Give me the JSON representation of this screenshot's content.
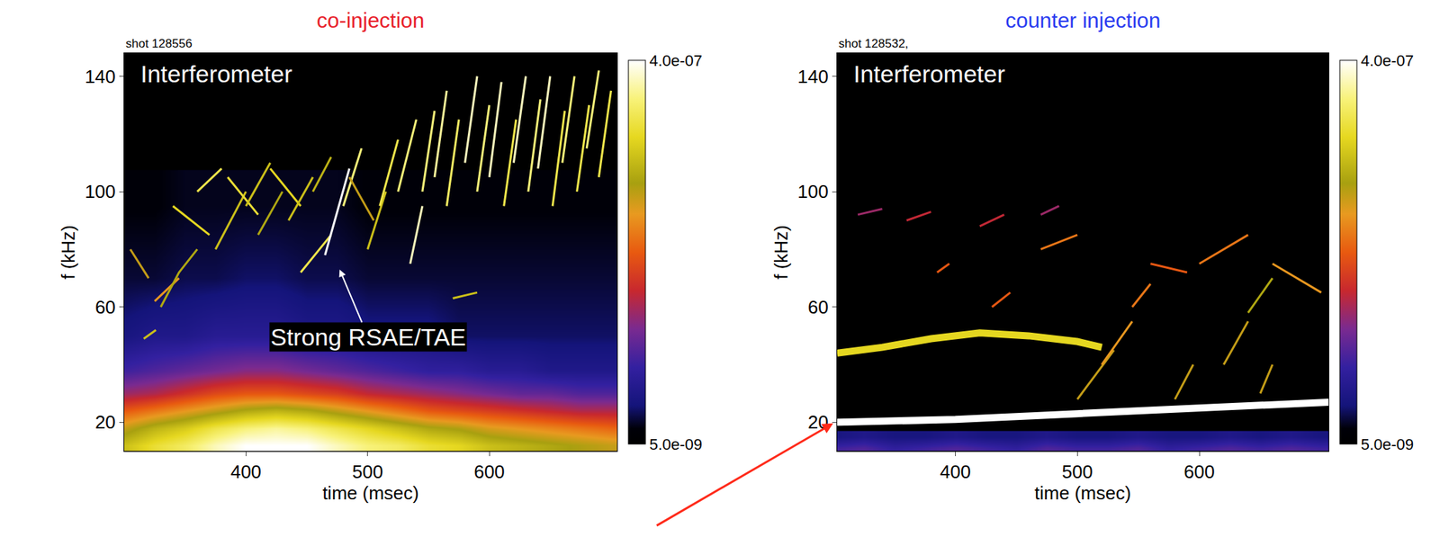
{
  "chart_data": [
    {
      "type": "heatmap",
      "title": "co-injection",
      "color": "#e8202a",
      "subtitle": "shot 128556",
      "x_label": "time (msec)",
      "y_label": "f (kHz)",
      "xlim": [
        300,
        705
      ],
      "xticks": [
        400,
        500,
        600
      ],
      "ylim": [
        10,
        148
      ],
      "yticks": [
        20,
        60,
        100,
        140
      ],
      "grid": false,
      "colorbar": {
        "range": [
          5e-09,
          4e-07
        ],
        "ticks": [
          {
            "value": 4e-07,
            "label": "4.0e-07"
          },
          {
            "value": 5e-09,
            "label": "5.0e-09"
          }
        ]
      },
      "heatmap": {
        "x": [
          300,
          325,
          350,
          375,
          400,
          425,
          450,
          475,
          500,
          525,
          550,
          575,
          600,
          625,
          650,
          675,
          700
        ],
        "y": [
          12,
          18,
          24,
          30,
          38,
          50,
          70,
          95
        ],
        "z": [
          [
            3e-07,
            3.3e-07,
            3.5e-07,
            3.8e-07,
            4e-07,
            4e-07,
            4e-07,
            3.8e-07,
            3.6e-07,
            3.5e-07,
            3.3e-07,
            3.2e-07,
            3e-07,
            2.9e-07,
            2.8e-07,
            2.7e-07,
            2.6e-07
          ],
          [
            2.6e-07,
            2.9e-07,
            3.1e-07,
            3.4e-07,
            3.6e-07,
            3.7e-07,
            3.6e-07,
            3.4e-07,
            3.2e-07,
            3e-07,
            2.8e-07,
            2.7e-07,
            2.5e-07,
            2.4e-07,
            2.3e-07,
            2.2e-07,
            2.1e-07
          ],
          [
            2e-07,
            2.2e-07,
            2.4e-07,
            2.6e-07,
            2.8e-07,
            2.9e-07,
            2.8e-07,
            2.6e-07,
            2.4e-07,
            2.2e-07,
            2e-07,
            1.9e-07,
            1.8e-07,
            1.7e-07,
            1.6e-07,
            1.5e-07,
            1.5e-07
          ],
          [
            1.4e-07,
            1.5e-07,
            1.7e-07,
            1.9e-07,
            2e-07,
            2e-07,
            1.9e-07,
            1.8e-07,
            1.6e-07,
            1.5e-07,
            1.4e-07,
            1.3e-07,
            1.2e-07,
            1.1e-07,
            1.1e-07,
            1e-07,
            1e-07
          ],
          [
            9e-08,
            1e-07,
            1.1e-07,
            1.2e-07,
            1.3e-07,
            1.3e-07,
            1.2e-07,
            1.1e-07,
            1e-07,
            9e-08,
            8e-08,
            8e-08,
            7e-08,
            7e-08,
            6e-08,
            6e-08,
            6e-08
          ],
          [
            5e-08,
            6e-08,
            6e-08,
            7e-08,
            7e-08,
            7e-08,
            6e-08,
            6e-08,
            5e-08,
            5e-08,
            5e-08,
            4e-08,
            4e-08,
            4e-08,
            4e-08,
            4e-08,
            4e-08
          ],
          [
            3e-08,
            3e-08,
            3.5e-08,
            3.5e-08,
            4e-08,
            4e-08,
            3.5e-08,
            3.5e-08,
            3e-08,
            3e-08,
            3e-08,
            3e-08,
            3e-08,
            3e-08,
            3e-08,
            3e-08,
            3e-08
          ],
          [
            2e-08,
            2e-08,
            2.5e-08,
            2.5e-08,
            2.5e-08,
            2.5e-08,
            2.5e-08,
            2.5e-08,
            2e-08,
            2e-08,
            2e-08,
            2e-08,
            2e-08,
            2e-08,
            2e-08,
            2e-08,
            2e-08
          ]
        ]
      },
      "series": [
        {
          "type": "line",
          "x": [
            305,
            320
          ],
          "values": [
            80,
            70
          ],
          "amplitude": 2.6e-07
        },
        {
          "type": "line",
          "x": [
            316,
            326
          ],
          "values": [
            49,
            52
          ],
          "amplitude": 3e-07
        },
        {
          "type": "line",
          "x": [
            325,
            345
          ],
          "values": [
            62,
            70
          ],
          "amplitude": 2.4e-07
        },
        {
          "type": "line",
          "x": [
            330,
            345,
            360
          ],
          "values": [
            60,
            72,
            80
          ],
          "amplitude": 2.8e-07
        },
        {
          "type": "line",
          "x": [
            340,
            370
          ],
          "values": [
            95,
            85
          ],
          "amplitude": 3.2e-07
        },
        {
          "type": "line",
          "x": [
            360,
            380
          ],
          "values": [
            100,
            108
          ],
          "amplitude": 3.4e-07
        },
        {
          "type": "line",
          "x": [
            375,
            400
          ],
          "values": [
            80,
            100
          ],
          "amplitude": 3e-07
        },
        {
          "type": "line",
          "x": [
            385,
            410
          ],
          "values": [
            105,
            92
          ],
          "amplitude": 3.3e-07
        },
        {
          "type": "line",
          "x": [
            400,
            420
          ],
          "values": [
            95,
            110
          ],
          "amplitude": 3e-07
        },
        {
          "type": "line",
          "x": [
            410,
            430
          ],
          "values": [
            85,
            100
          ],
          "amplitude": 2.8e-07
        },
        {
          "type": "line",
          "x": [
            420,
            445
          ],
          "values": [
            108,
            95
          ],
          "amplitude": 3.2e-07
        },
        {
          "type": "line",
          "x": [
            435,
            455
          ],
          "values": [
            90,
            105
          ],
          "amplitude": 3e-07
        },
        {
          "type": "line",
          "x": [
            445,
            470
          ],
          "values": [
            72,
            85
          ],
          "amplitude": 3.4e-07
        },
        {
          "type": "line",
          "x": [
            455,
            470
          ],
          "values": [
            100,
            112
          ],
          "amplitude": 2.9e-07
        },
        {
          "type": "line",
          "x": [
            465,
            485
          ],
          "values": [
            78,
            108
          ],
          "amplitude": 4e-07
        },
        {
          "type": "line",
          "x": [
            480,
            495
          ],
          "values": [
            95,
            115
          ],
          "amplitude": 3.6e-07
        },
        {
          "type": "line",
          "x": [
            485,
            505
          ],
          "values": [
            105,
            90
          ],
          "amplitude": 2.6e-07
        },
        {
          "type": "line",
          "x": [
            500,
            515
          ],
          "values": [
            80,
            100
          ],
          "amplitude": 3e-07
        },
        {
          "type": "line",
          "x": [
            510,
            525
          ],
          "values": [
            95,
            118
          ],
          "amplitude": 3.4e-07
        },
        {
          "type": "line",
          "x": [
            525,
            540
          ],
          "values": [
            100,
            125
          ],
          "amplitude": 3.6e-07
        },
        {
          "type": "line",
          "x": [
            535,
            545
          ],
          "values": [
            75,
            95
          ],
          "amplitude": 3.8e-07
        },
        {
          "type": "line",
          "x": [
            545,
            555
          ],
          "values": [
            100,
            128
          ],
          "amplitude": 3.6e-07
        },
        {
          "type": "line",
          "x": [
            555,
            565
          ],
          "values": [
            105,
            135
          ],
          "amplitude": 3.7e-07
        },
        {
          "type": "line",
          "x": [
            565,
            575
          ],
          "values": [
            95,
            125
          ],
          "amplitude": 3.5e-07
        },
        {
          "type": "line",
          "x": [
            570,
            590
          ],
          "values": [
            63,
            65
          ],
          "amplitude": 3e-07
        },
        {
          "type": "line",
          "x": [
            580,
            590
          ],
          "values": [
            110,
            140
          ],
          "amplitude": 3.8e-07
        },
        {
          "type": "line",
          "x": [
            590,
            600
          ],
          "values": [
            100,
            130
          ],
          "amplitude": 3.6e-07
        },
        {
          "type": "line",
          "x": [
            600,
            610
          ],
          "values": [
            105,
            138
          ],
          "amplitude": 3.8e-07
        },
        {
          "type": "line",
          "x": [
            612,
            622
          ],
          "values": [
            95,
            125
          ],
          "amplitude": 3.4e-07
        },
        {
          "type": "line",
          "x": [
            620,
            630
          ],
          "values": [
            110,
            140
          ],
          "amplitude": 3.8e-07
        },
        {
          "type": "line",
          "x": [
            632,
            642
          ],
          "values": [
            100,
            132
          ],
          "amplitude": 3.6e-07
        },
        {
          "type": "line",
          "x": [
            640,
            650
          ],
          "values": [
            108,
            140
          ],
          "amplitude": 3.8e-07
        },
        {
          "type": "line",
          "x": [
            652,
            662
          ],
          "values": [
            95,
            128
          ],
          "amplitude": 3.4e-07
        },
        {
          "type": "line",
          "x": [
            660,
            670
          ],
          "values": [
            110,
            140
          ],
          "amplitude": 3.6e-07
        },
        {
          "type": "line",
          "x": [
            672,
            682
          ],
          "values": [
            100,
            130
          ],
          "amplitude": 3.4e-07
        },
        {
          "type": "line",
          "x": [
            680,
            690
          ],
          "values": [
            115,
            142
          ],
          "amplitude": 3.6e-07
        },
        {
          "type": "line",
          "x": [
            690,
            700
          ],
          "values": [
            105,
            135
          ],
          "amplitude": 3.4e-07
        }
      ],
      "annotations": [
        {
          "text": "Interferometer"
        },
        {
          "text": "Strong RSAE/TAE",
          "x": 477,
          "y": 73
        }
      ]
    },
    {
      "type": "heatmap",
      "title": "counter injection",
      "color": "#2a3cf0",
      "subtitle": "shot 128532,",
      "x_label": "time (msec)",
      "y_label": "f (kHz)",
      "xlim": [
        303,
        706
      ],
      "xticks": [
        400,
        500,
        600
      ],
      "ylim": [
        10,
        148
      ],
      "yticks": [
        20,
        60,
        100,
        140
      ],
      "grid": false,
      "colorbar": {
        "range": [
          5e-09,
          4e-07
        ],
        "ticks": [
          {
            "value": 4e-07,
            "label": "4.0e-07"
          },
          {
            "value": 5e-09,
            "label": "5.0e-09"
          }
        ]
      },
      "heatmap": {
        "x": [
          300,
          325,
          350,
          375,
          400,
          425,
          450,
          475,
          500,
          525,
          550,
          575,
          600,
          625,
          650,
          675,
          700
        ],
        "y": [
          11,
          15
        ],
        "z": [
          [
            9e-08,
            1e-07,
            8e-08,
            9e-08,
            1e-07,
            9e-08,
            8e-08,
            1e-07,
            9e-08,
            9e-08,
            1e-07,
            8e-08,
            9e-08,
            1e-07,
            9e-08,
            1e-07,
            9e-08
          ],
          [
            5e-08,
            6e-08,
            5e-08,
            5e-08,
            6e-08,
            5e-08,
            5e-08,
            6e-08,
            5e-08,
            5e-08,
            6e-08,
            5e-08,
            5e-08,
            6e-08,
            5e-08,
            6e-08,
            5e-08
          ]
        ]
      },
      "series": [
        {
          "type": "line",
          "line_style": "thick",
          "x": [
            303,
            340,
            380,
            420,
            460,
            500,
            520
          ],
          "values": [
            44,
            46,
            49,
            51,
            50,
            48,
            46
          ],
          "amplitude": 3.2e-07
        },
        {
          "type": "line",
          "line_style": "thick",
          "x": [
            303,
            400,
            500,
            600,
            706
          ],
          "values": [
            20,
            21,
            23,
            25,
            27
          ],
          "amplitude": 4e-07
        },
        {
          "type": "line",
          "x": [
            320,
            340
          ],
          "values": [
            92,
            94
          ],
          "amplitude": 1.4e-07
        },
        {
          "type": "line",
          "x": [
            360,
            380
          ],
          "values": [
            90,
            93
          ],
          "amplitude": 1.6e-07
        },
        {
          "type": "line",
          "x": [
            385,
            395
          ],
          "values": [
            72,
            75
          ],
          "amplitude": 2e-07
        },
        {
          "type": "line",
          "x": [
            420,
            440
          ],
          "values": [
            88,
            92
          ],
          "amplitude": 1.6e-07
        },
        {
          "type": "line",
          "x": [
            430,
            445
          ],
          "values": [
            60,
            65
          ],
          "amplitude": 2e-07
        },
        {
          "type": "line",
          "x": [
            470,
            500
          ],
          "values": [
            80,
            85
          ],
          "amplitude": 2.2e-07
        },
        {
          "type": "line",
          "x": [
            470,
            485
          ],
          "values": [
            92,
            95
          ],
          "amplitude": 1.4e-07
        },
        {
          "type": "line",
          "x": [
            500,
            530
          ],
          "values": [
            28,
            45
          ],
          "amplitude": 2.6e-07
        },
        {
          "type": "line",
          "x": [
            520,
            545
          ],
          "values": [
            40,
            55
          ],
          "amplitude": 2.4e-07
        },
        {
          "type": "line",
          "x": [
            545,
            560
          ],
          "values": [
            60,
            68
          ],
          "amplitude": 2.2e-07
        },
        {
          "type": "line",
          "x": [
            560,
            590
          ],
          "values": [
            75,
            72
          ],
          "amplitude": 2e-07
        },
        {
          "type": "line",
          "x": [
            580,
            595
          ],
          "values": [
            28,
            40
          ],
          "amplitude": 2.6e-07
        },
        {
          "type": "line",
          "x": [
            600,
            640
          ],
          "values": [
            75,
            85
          ],
          "amplitude": 2.2e-07
        },
        {
          "type": "line",
          "x": [
            620,
            640
          ],
          "values": [
            40,
            55
          ],
          "amplitude": 2.6e-07
        },
        {
          "type": "line",
          "x": [
            640,
            660
          ],
          "values": [
            58,
            70
          ],
          "amplitude": 2.8e-07
        },
        {
          "type": "line",
          "x": [
            650,
            660
          ],
          "values": [
            30,
            40
          ],
          "amplitude": 2.6e-07
        },
        {
          "type": "line",
          "x": [
            660,
            700
          ],
          "values": [
            75,
            65
          ],
          "amplitude": 2.4e-07
        }
      ],
      "annotations": [
        {
          "text": "Interferometer"
        }
      ]
    }
  ]
}
